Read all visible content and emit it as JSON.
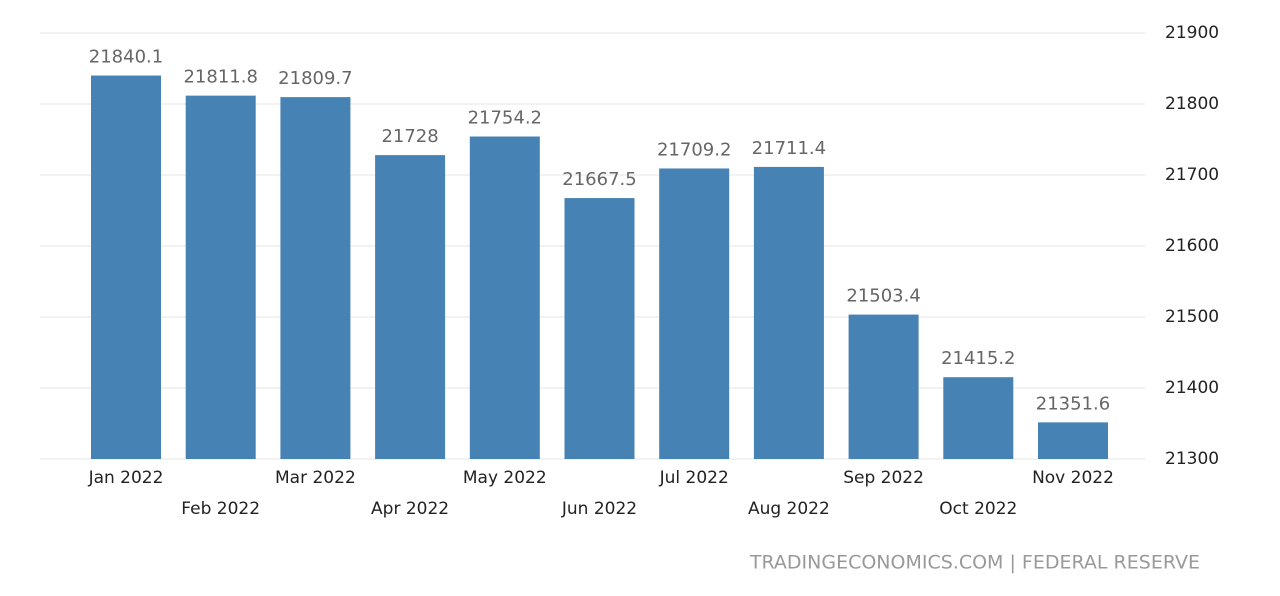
{
  "chart_data": {
    "type": "bar",
    "categories": [
      "Jan 2022",
      "Feb 2022",
      "Mar 2022",
      "Apr 2022",
      "May 2022",
      "Jun 2022",
      "Jul 2022",
      "Aug 2022",
      "Sep 2022",
      "Oct 2022",
      "Nov 2022"
    ],
    "values": [
      21840.1,
      21811.8,
      21809.7,
      21728,
      21754.2,
      21667.5,
      21709.2,
      21711.4,
      21503.4,
      21415.2,
      21351.6
    ],
    "color": "#4682b4",
    "ylim": [
      21300,
      21900
    ],
    "yticks": [
      21300,
      21400,
      21500,
      21600,
      21700,
      21800,
      21900
    ],
    "grid": true,
    "source": "TRADINGECONOMICS.COM | FEDERAL RESERVE"
  }
}
